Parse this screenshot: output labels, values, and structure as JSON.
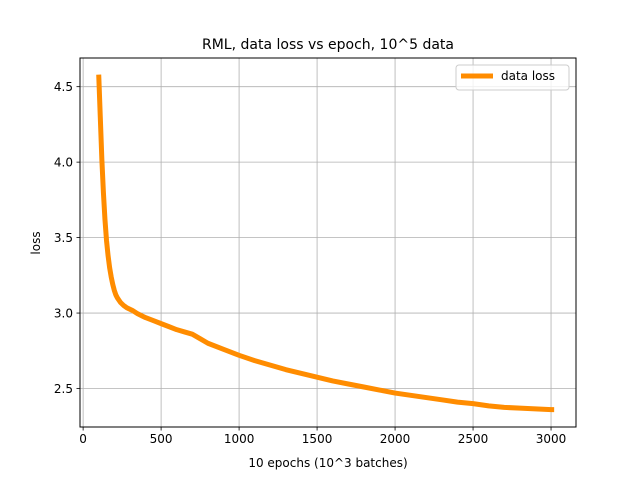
{
  "chart_data": {
    "type": "line",
    "title": "RML, data loss vs epoch, 10^5 data",
    "xlabel": "10 epochs (10^3 batches)",
    "ylabel": "loss",
    "xlim": [
      -20,
      3160
    ],
    "ylim": [
      2.245,
      4.69
    ],
    "xticks": [
      0,
      500,
      1000,
      1500,
      2000,
      2500,
      3000
    ],
    "yticks": [
      2.5,
      3.0,
      3.5,
      4.0,
      4.5
    ],
    "xtick_labels": [
      "0",
      "500",
      "1000",
      "1500",
      "2000",
      "2500",
      "3000"
    ],
    "ytick_labels": [
      "2.5",
      "3.0",
      "3.5",
      "4.0",
      "4.5"
    ],
    "grid": true,
    "legend_position": "top-right",
    "series": [
      {
        "name": "data loss",
        "color": "#ff8c00",
        "x": [
          100,
          110,
          120,
          130,
          140,
          150,
          160,
          170,
          180,
          190,
          200,
          210,
          220,
          230,
          240,
          250,
          260,
          280,
          300,
          320,
          350,
          380,
          400,
          450,
          500,
          550,
          600,
          650,
          700,
          750,
          800,
          900,
          1000,
          1100,
          1200,
          1300,
          1400,
          1500,
          1600,
          1700,
          1800,
          1900,
          2000,
          2100,
          2200,
          2300,
          2400,
          2500,
          2600,
          2700,
          2800,
          2900,
          3000,
          3020
        ],
        "values": [
          4.58,
          4.3,
          4.02,
          3.8,
          3.62,
          3.48,
          3.38,
          3.3,
          3.24,
          3.19,
          3.15,
          3.12,
          3.1,
          3.085,
          3.07,
          3.06,
          3.05,
          3.035,
          3.025,
          3.015,
          2.995,
          2.98,
          2.97,
          2.95,
          2.93,
          2.91,
          2.89,
          2.875,
          2.86,
          2.83,
          2.8,
          2.76,
          2.72,
          2.685,
          2.655,
          2.625,
          2.6,
          2.575,
          2.55,
          2.53,
          2.51,
          2.49,
          2.47,
          2.455,
          2.44,
          2.425,
          2.41,
          2.4,
          2.385,
          2.375,
          2.37,
          2.365,
          2.36,
          2.36
        ]
      }
    ]
  }
}
